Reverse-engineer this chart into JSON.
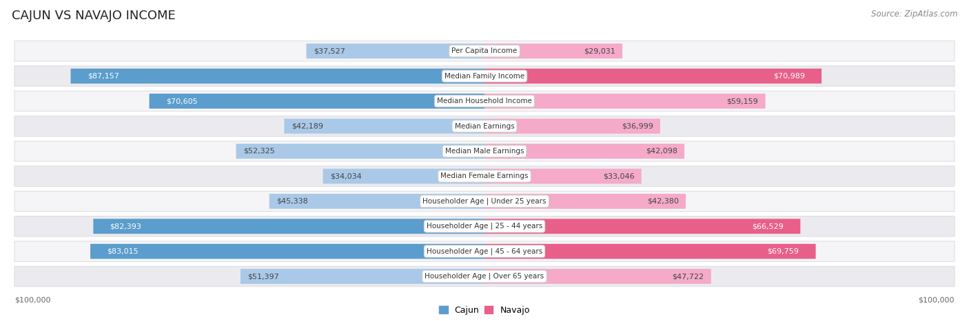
{
  "title": "CAJUN VS NAVAJO INCOME",
  "source": "Source: ZipAtlas.com",
  "categories": [
    "Per Capita Income",
    "Median Family Income",
    "Median Household Income",
    "Median Earnings",
    "Median Male Earnings",
    "Median Female Earnings",
    "Householder Age | Under 25 years",
    "Householder Age | 25 - 44 years",
    "Householder Age | 45 - 64 years",
    "Householder Age | Over 65 years"
  ],
  "cajun_values": [
    37527,
    87157,
    70605,
    42189,
    52325,
    34034,
    45338,
    82393,
    83015,
    51397
  ],
  "navajo_values": [
    29031,
    70989,
    59159,
    36999,
    42098,
    33046,
    42380,
    66529,
    69759,
    47722
  ],
  "cajun_color_light": "#aac9e8",
  "cajun_color_strong": "#5b9dcc",
  "navajo_color_light": "#f4aac8",
  "navajo_color_strong": "#e8608a",
  "strong_threshold": 60000,
  "max_value": 100000,
  "row_bg_odd": "#f5f5f7",
  "row_bg_even": "#ebebef",
  "row_border": "#d8d8de",
  "label_bg": "#ffffff",
  "title_fontsize": 13,
  "source_fontsize": 8.5,
  "value_fontsize": 8,
  "category_fontsize": 7.5,
  "legend_fontsize": 9,
  "axis_label_fontsize": 8
}
